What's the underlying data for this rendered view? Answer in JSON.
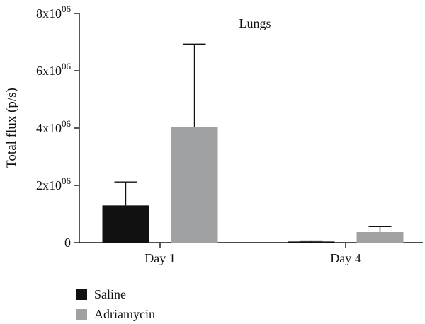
{
  "chart_data": {
    "type": "bar",
    "title": "Lungs",
    "ylabel": "Total flux (p/s)",
    "xlabel": "",
    "categories": [
      "Day 1",
      "Day 4"
    ],
    "ylim": [
      0,
      8000000
    ],
    "yticks": [
      {
        "value": 0,
        "base": "0",
        "exp": ""
      },
      {
        "value": 2000000,
        "base": "2x10",
        "exp": "06"
      },
      {
        "value": 4000000,
        "base": "4x10",
        "exp": "06"
      },
      {
        "value": 6000000,
        "base": "6x10",
        "exp": "06"
      },
      {
        "value": 8000000,
        "base": "8x10",
        "exp": "06"
      }
    ],
    "series": [
      {
        "name": "Saline",
        "color": "#111111",
        "values": [
          1300000,
          40000
        ],
        "errors": [
          820000,
          20000
        ]
      },
      {
        "name": "Adriamycin",
        "color": "#a0a1a3",
        "values": [
          4030000,
          370000
        ],
        "errors": [
          2900000,
          190000
        ]
      }
    ],
    "legend_position": "bottom-left",
    "grid": false
  }
}
